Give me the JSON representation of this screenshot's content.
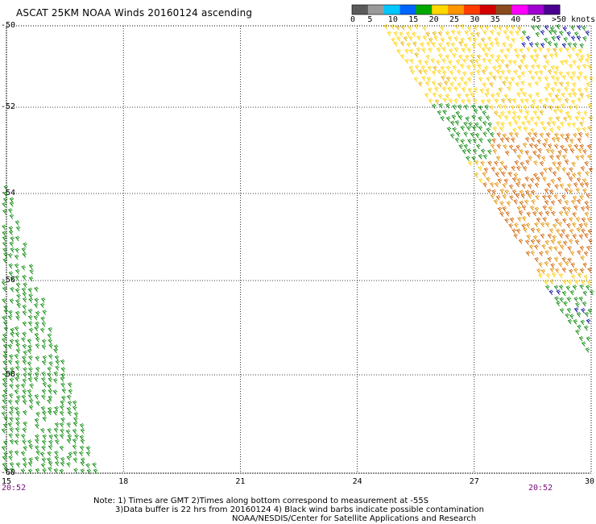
{
  "title": "ASCAT 25KM NOAA Winds 20160124 ascending",
  "colorbar": {
    "labels": [
      "0",
      "5",
      "10",
      "15",
      "20",
      "25",
      "30",
      "35",
      "40",
      "45",
      ">50 knots"
    ],
    "colors": [
      "#5a5a5a",
      "#9a9a9a",
      "#00c8ff",
      "#0064ff",
      "#00a800",
      "#ffd800",
      "#ff9600",
      "#ff3c00",
      "#d20000",
      "#8a4a1e",
      "#ff00ff",
      "#a000d0",
      "#4a0090"
    ]
  },
  "map": {
    "latitudes": [
      "-50",
      "-52",
      "-54",
      "-56",
      "-58",
      "-60"
    ],
    "longitudes": [
      "15",
      "18",
      "21",
      "24",
      "27",
      "30"
    ],
    "lat_range": [
      -60,
      -50
    ],
    "lon_range": [
      15,
      30
    ],
    "grid": "dotted",
    "pass_times": {
      "left": "20:52",
      "right": "20:52"
    },
    "swaths": [
      {
        "name": "west",
        "dominant_speed_knots": "15-20",
        "color": "#0a8a0a"
      },
      {
        "name": "east",
        "dominant_speed_knots": "20-35",
        "colors": [
          "#ffd200",
          "#e49000",
          "#d06000",
          "#0a8a0a",
          "#0a0aa0"
        ]
      }
    ]
  },
  "notes": {
    "line1": "Note: 1) Times are GMT 2)Times along bottom correspond to measurement at -55S",
    "line2": "3)Data buffer is 22 hrs from 20160124 4) Black wind barbs indicate possible contamination",
    "line3": "NOAA/NESDIS/Center for Satellite Applications and Research"
  }
}
